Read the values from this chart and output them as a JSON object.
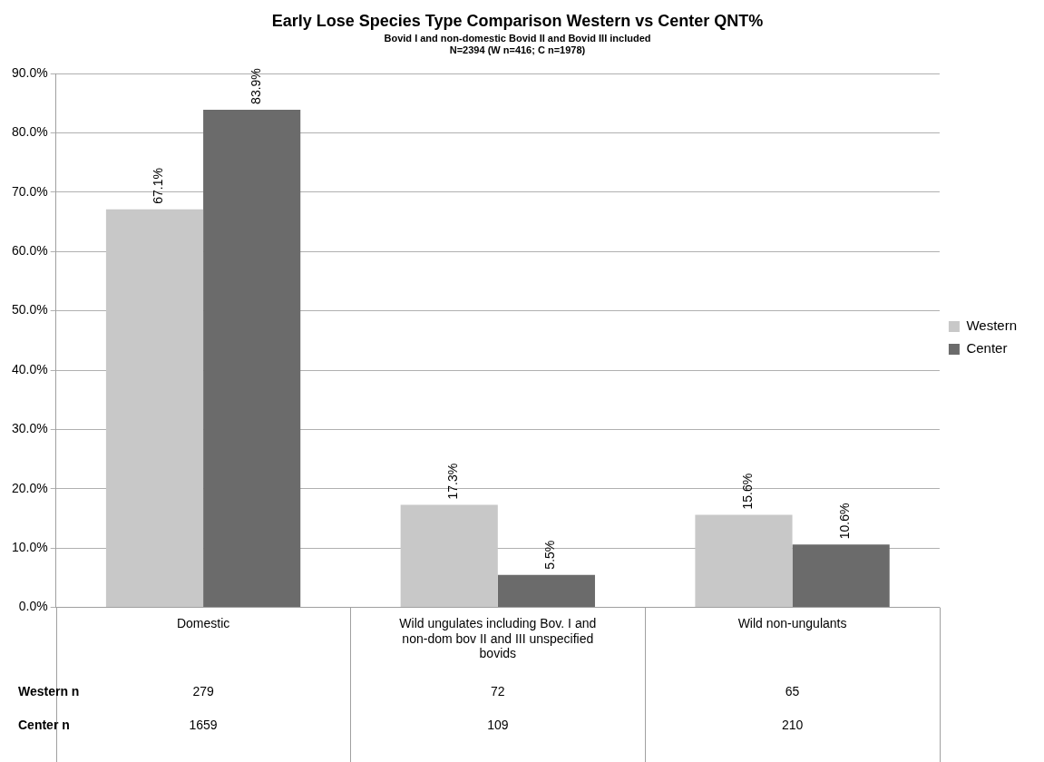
{
  "chart_data": {
    "type": "bar",
    "title": "Early Lose Species Type Comparison Western vs Center QNT%",
    "subtitle": "Bovid I and non-domestic Bovid II and Bovid III included\nN=2394 (W n=416; C n=1978)",
    "categories": [
      "Domestic",
      "Wild ungulates including Bov. I and non-dom bov II and III unspecified bovids",
      "Wild non-ungulants"
    ],
    "series": [
      {
        "name": "Western",
        "color": "#c8c8c8",
        "values": [
          67.1,
          17.3,
          15.6
        ],
        "value_labels": [
          "67.1%",
          "17.3%",
          "15.6%"
        ]
      },
      {
        "name": "Center",
        "color": "#6b6b6b",
        "values": [
          83.9,
          5.5,
          10.6
        ],
        "value_labels": [
          "83.9%",
          "5.5%",
          "10.6%"
        ]
      }
    ],
    "ylim": [
      0,
      90
    ],
    "yticks": [
      {
        "value": 0,
        "label": "0.0%"
      },
      {
        "value": 10,
        "label": "10.0%"
      },
      {
        "value": 20,
        "label": "20.0%"
      },
      {
        "value": 30,
        "label": "30.0%"
      },
      {
        "value": 40,
        "label": "40.0%"
      },
      {
        "value": 50,
        "label": "50.0%"
      },
      {
        "value": 60,
        "label": "60.0%"
      },
      {
        "value": 70,
        "label": "70.0%"
      },
      {
        "value": 80,
        "label": "80.0%"
      },
      {
        "value": 90,
        "label": "90.0%"
      }
    ],
    "grid": "y",
    "legend": "right",
    "annotations": [
      "Western n",
      "279",
      "72",
      "65",
      "Center n",
      "1659",
      "109",
      "210"
    ]
  }
}
